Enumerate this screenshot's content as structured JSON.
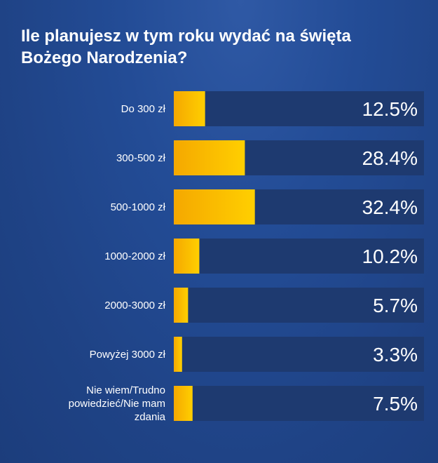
{
  "title": "Ile planujesz w tym roku wydać na święta Bożego Narodzenia?",
  "chart_data": {
    "type": "bar",
    "orientation": "horizontal",
    "title": "Ile planujesz w tym roku wydać na święta Bożego Narodzenia?",
    "categories": [
      [
        "Do 300 zł"
      ],
      [
        "300-500 zł"
      ],
      [
        "500-1000 zł"
      ],
      [
        "1000-2000 zł"
      ],
      [
        "2000-3000 zł"
      ],
      [
        "Powyżej 3000 zł"
      ],
      [
        "Nie wiem/Trudno",
        "powiedzieć/Nie mam",
        "zdania"
      ]
    ],
    "values": [
      12.5,
      28.4,
      32.4,
      10.2,
      5.7,
      3.3,
      7.5
    ],
    "value_labels": [
      "12.5%",
      "28.4%",
      "32.4%",
      "10.2%",
      "5.7%",
      "3.3%",
      "7.5%"
    ],
    "xlim": [
      0,
      100
    ],
    "unit": "%",
    "colors": {
      "bar": "#ffc800",
      "bar_dark": "#f5a000",
      "track": "#1e3a70",
      "text": "#ffffff"
    }
  }
}
